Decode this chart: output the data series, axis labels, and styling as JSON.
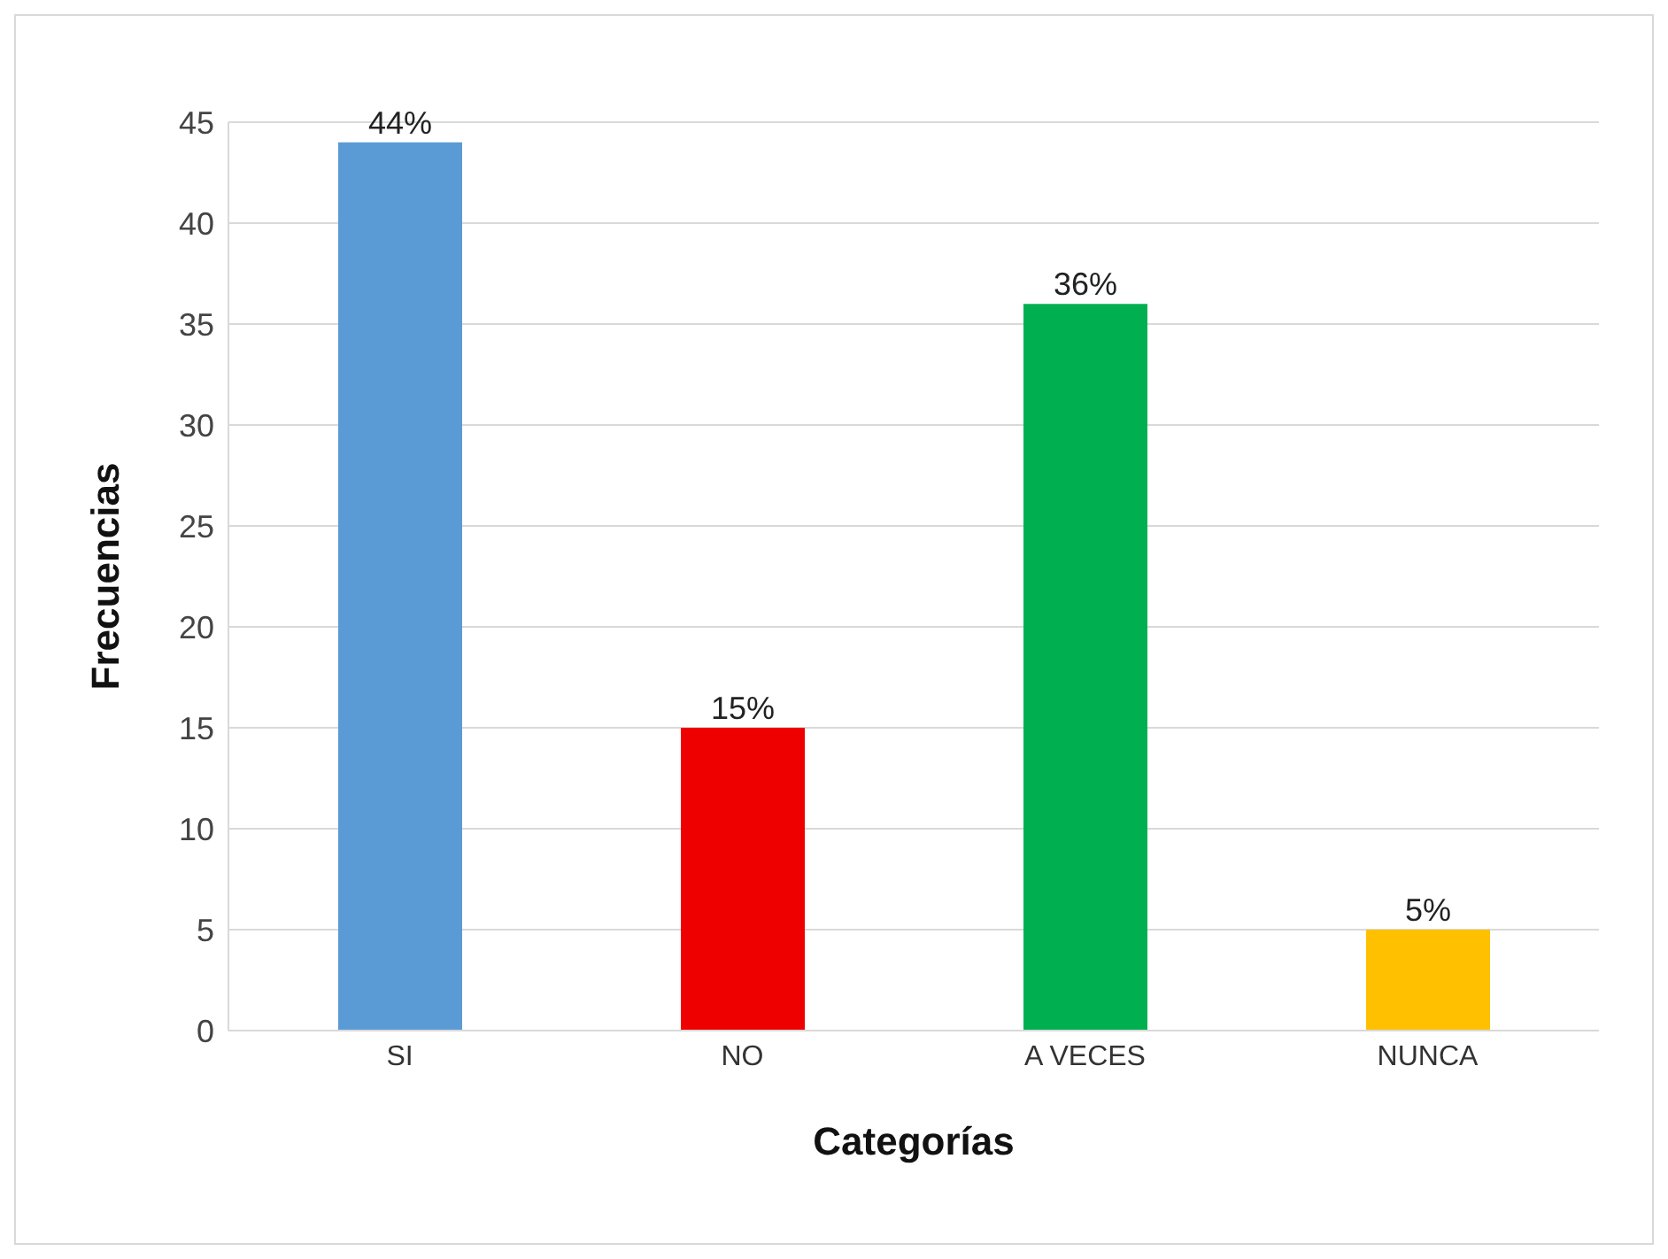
{
  "chart_data": {
    "type": "bar",
    "xlabel": "Categorías",
    "ylabel": "Frecuencias",
    "categories": [
      "SI",
      "NO",
      "A VECES",
      "NUNCA"
    ],
    "values": [
      44,
      15,
      36,
      5
    ],
    "colors": [
      "#5b9bd5",
      "#ee0000",
      "#00b050",
      "#ffc000"
    ],
    "value_labels": [
      "44%",
      "15%",
      "36%",
      "5%"
    ],
    "ylim": [
      0,
      45
    ],
    "yticks": [
      0,
      5,
      10,
      15,
      20,
      25,
      30,
      35,
      40,
      45
    ],
    "grid": "y",
    "legend": false
  }
}
